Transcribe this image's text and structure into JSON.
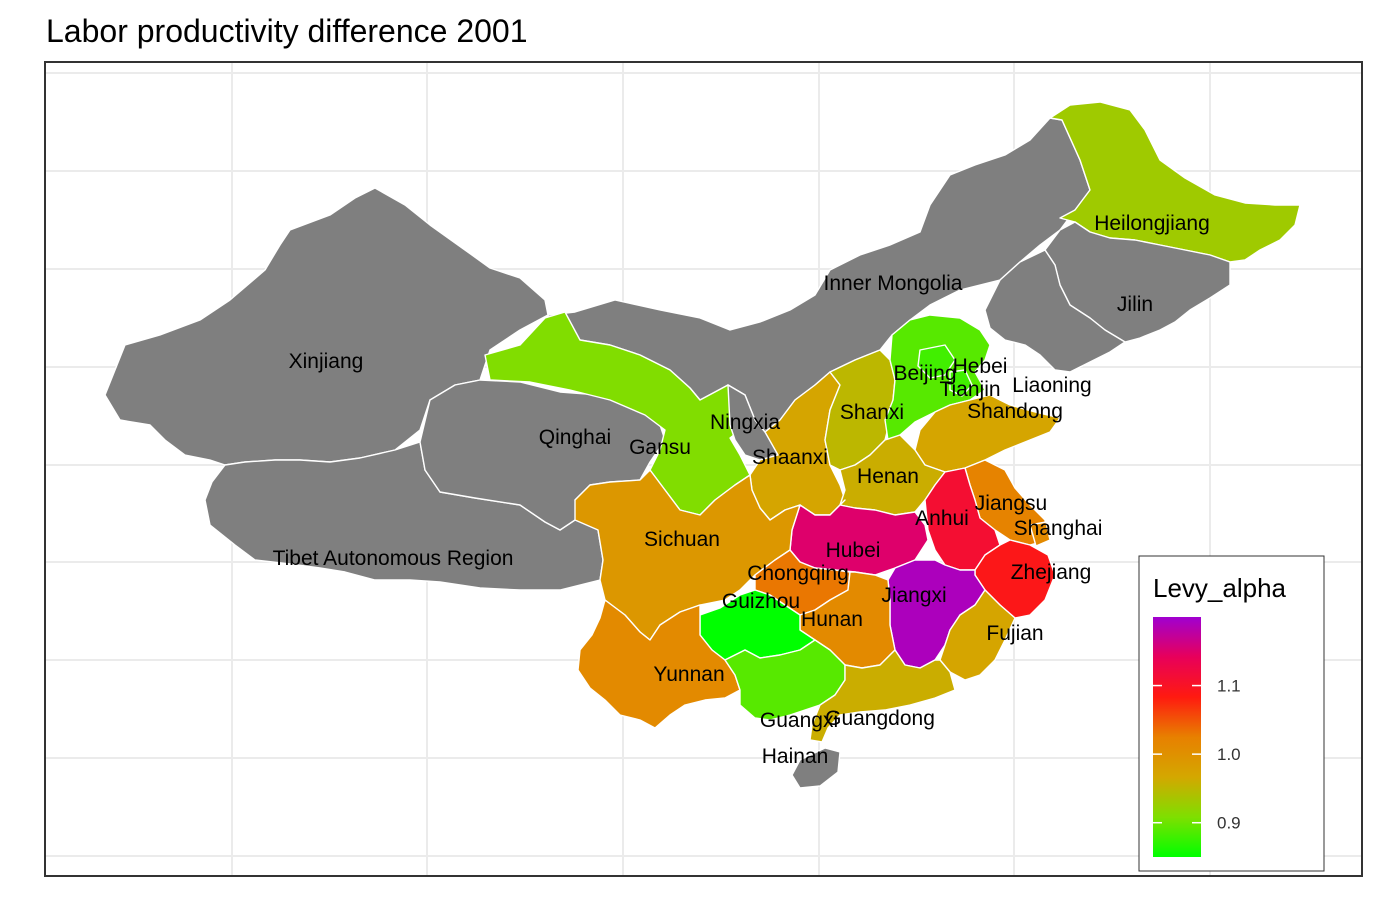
{
  "title": "Labor productivity difference 2001",
  "colors": {
    "no_data": "#7f7f7f",
    "grid": "#ebebeb",
    "panel_border": "#333333",
    "scale": [
      "#00ff00",
      "#7fdf00",
      "#d4a700",
      "#e88000",
      "#ff1a10",
      "#e8005a",
      "#a000d0"
    ]
  },
  "legend": {
    "title": "Levy_alpha",
    "min": 0.85,
    "max": 1.2,
    "ticks": [
      {
        "value": 0.9,
        "label": "0.9"
      },
      {
        "value": 1.0,
        "label": "1.0"
      },
      {
        "value": 1.1,
        "label": "1.1"
      }
    ]
  },
  "provinces": [
    {
      "name": "Xinjiang",
      "label": "Xinjiang",
      "levy_alpha": null
    },
    {
      "name": "Tibet",
      "label": "Tibet Autonomous Region",
      "levy_alpha": null
    },
    {
      "name": "Qinghai",
      "label": "Qinghai",
      "levy_alpha": null
    },
    {
      "name": "InnerMongolia",
      "label": "Inner Mongolia",
      "levy_alpha": null
    },
    {
      "name": "Jilin",
      "label": "Jilin",
      "levy_alpha": null
    },
    {
      "name": "Liaoning",
      "label": "Liaoning",
      "levy_alpha": null
    },
    {
      "name": "Ningxia",
      "label": "Ningxia",
      "levy_alpha": null
    },
    {
      "name": "Hainan",
      "label": "Hainan",
      "levy_alpha": null
    },
    {
      "name": "Heilongjiang",
      "label": "Heilongjiang",
      "levy_alpha": 0.93
    },
    {
      "name": "Gansu",
      "label": "Gansu",
      "levy_alpha": 0.91
    },
    {
      "name": "Shaanxi",
      "label": "Shaanxi",
      "levy_alpha": 0.97
    },
    {
      "name": "Shanxi",
      "label": "Shanxi",
      "levy_alpha": 0.95
    },
    {
      "name": "Hebei",
      "label": "Hebei",
      "levy_alpha": 0.89
    },
    {
      "name": "Beijing",
      "label": "Beijing",
      "levy_alpha": 0.88
    },
    {
      "name": "Tianjin",
      "label": "Tianjin",
      "levy_alpha": 0.88
    },
    {
      "name": "Shandong",
      "label": "Shandong",
      "levy_alpha": 0.97
    },
    {
      "name": "Henan",
      "label": "Henan",
      "levy_alpha": 0.96
    },
    {
      "name": "Jiangsu",
      "label": "Jiangsu",
      "levy_alpha": 1.02
    },
    {
      "name": "Shanghai",
      "label": "Shanghai",
      "levy_alpha": 1.01
    },
    {
      "name": "Anhui",
      "label": "Anhui",
      "levy_alpha": 1.11
    },
    {
      "name": "Zhejiang",
      "label": "Zhejiang",
      "levy_alpha": 1.09
    },
    {
      "name": "Hubei",
      "label": "Hubei",
      "levy_alpha": 1.15
    },
    {
      "name": "Jiangxi",
      "label": "Jiangxi",
      "levy_alpha": 1.19
    },
    {
      "name": "Fujian",
      "label": "Fujian",
      "levy_alpha": 0.97
    },
    {
      "name": "Sichuan",
      "label": "Sichuan",
      "levy_alpha": 0.99
    },
    {
      "name": "Chongqing",
      "label": "Chongqing",
      "levy_alpha": 1.03
    },
    {
      "name": "Hunan",
      "label": "Hunan",
      "levy_alpha": 1.01
    },
    {
      "name": "Guizhou",
      "label": "Guizhou",
      "levy_alpha": 0.85
    },
    {
      "name": "Yunnan",
      "label": "Yunnan",
      "levy_alpha": 1.01
    },
    {
      "name": "Guangxi",
      "label": "Guangxi",
      "levy_alpha": 0.89
    },
    {
      "name": "Guangdong",
      "label": "Guangdong",
      "levy_alpha": 0.96
    }
  ]
}
